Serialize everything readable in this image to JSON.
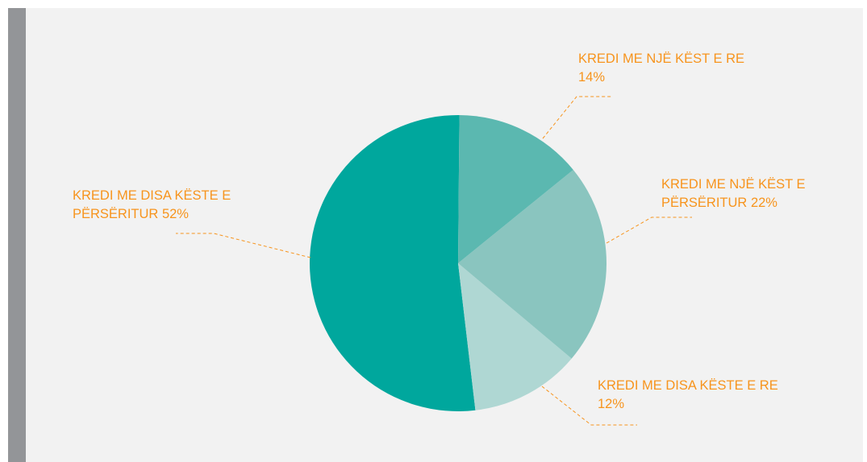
{
  "chart_data": {
    "type": "pie",
    "categories": [
      "KREDI ME NJË KËST E RE",
      "KREDI ME NJË KËST E PËRSËRITUR",
      "KREDI ME DISA KËSTE E RE",
      "KREDI ME DISA KËSTE E PËRSËRITUR"
    ],
    "values": [
      14,
      22,
      12,
      52
    ],
    "value_labels": [
      "14%",
      "22%",
      "12%",
      "52%"
    ],
    "colors": [
      "#5bb8b0",
      "#8ac5bf",
      "#afd7d3",
      "#00a79d"
    ]
  }
}
